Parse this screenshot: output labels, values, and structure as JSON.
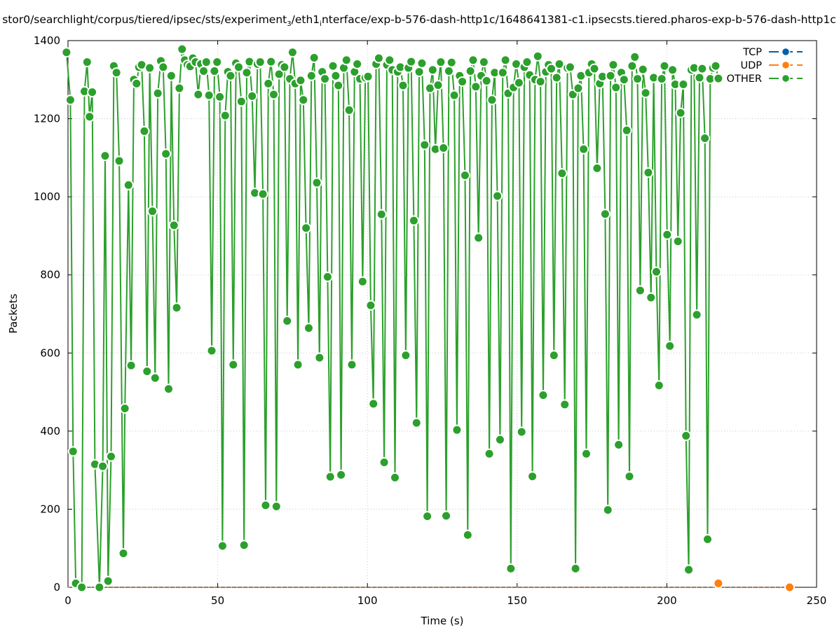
{
  "chart_data": {
    "type": "line",
    "title": "stor0/searchlight/corpus/tiered/ipsec/sts/experiment_3/eth1_interface/exp-b-576-dash-http1c/1648641381-c1.ipsecsts.tiered.pharos-exp-b-576-dash-http1c",
    "title_parts": {
      "a": "stor0/searchlight/corpus/tiered/ipsec/sts/experiment",
      "a_sub": "3",
      "b": "/eth1",
      "b_sub": "i",
      "c": "nterface/exp-b-576-dash-http1c/1648641381-c1.ipsecsts.tiered.pharos-exp-b-576-dash-http1c"
    },
    "xlabel": "Time (s)",
    "ylabel": "Packets",
    "xlim": [
      0,
      250
    ],
    "ylim": [
      0,
      1400
    ],
    "x_ticks": [
      0,
      50,
      100,
      150,
      200,
      250
    ],
    "y_ticks": [
      0,
      200,
      400,
      600,
      800,
      1000,
      1200,
      1400
    ],
    "grid": true,
    "legend_position": "top-right",
    "series": [
      {
        "name": "TCP",
        "color": "#0060ad",
        "points": []
      },
      {
        "name": "UDP",
        "color": "#ff7f0e",
        "points": [
          [
            217.2,
            10
          ],
          [
            241,
            0
          ]
        ],
        "zero_line_from": 0,
        "zero_line_to": 241
      },
      {
        "name": "OTHER",
        "color": "#2ca02c",
        "points": [
          [
            -0.5,
            1370
          ],
          [
            0.8,
            1248
          ],
          [
            1.7,
            348
          ],
          [
            2.6,
            10
          ],
          [
            4.6,
            0
          ],
          [
            5.5,
            1270
          ],
          [
            6.4,
            1345
          ],
          [
            7.2,
            1205
          ],
          [
            8.1,
            1268
          ],
          [
            9.0,
            315
          ],
          [
            10.5,
            0
          ],
          [
            11.6,
            310
          ],
          [
            12.4,
            1105
          ],
          [
            13.4,
            16
          ],
          [
            14.4,
            335
          ],
          [
            15.3,
            1335
          ],
          [
            16.2,
            1318
          ],
          [
            17.1,
            1092
          ],
          [
            18.5,
            87
          ],
          [
            19.0,
            458
          ],
          [
            20.2,
            1030
          ],
          [
            21.1,
            568
          ],
          [
            22.0,
            1300
          ],
          [
            22.9,
            1290
          ],
          [
            23.7,
            1332
          ],
          [
            24.6,
            1338
          ],
          [
            25.5,
            1168
          ],
          [
            26.4,
            553
          ],
          [
            27.3,
            1330
          ],
          [
            28.2,
            963
          ],
          [
            29.1,
            536
          ],
          [
            30.0,
            1265
          ],
          [
            31.0,
            1348
          ],
          [
            31.8,
            1332
          ],
          [
            32.7,
            1110
          ],
          [
            33.6,
            508
          ],
          [
            34.5,
            1310
          ],
          [
            35.4,
            927
          ],
          [
            36.3,
            716
          ],
          [
            37.2,
            1278
          ],
          [
            38.1,
            1378
          ],
          [
            39.0,
            1350
          ],
          [
            39.9,
            1338
          ],
          [
            40.8,
            1334
          ],
          [
            41.7,
            1355
          ],
          [
            42.6,
            1345
          ],
          [
            43.5,
            1262
          ],
          [
            44.4,
            1340
          ],
          [
            45.3,
            1322
          ],
          [
            46.2,
            1345
          ],
          [
            47.1,
            1260
          ],
          [
            48.0,
            606
          ],
          [
            48.9,
            1322
          ],
          [
            49.8,
            1345
          ],
          [
            50.7,
            1256
          ],
          [
            51.6,
            106
          ],
          [
            52.5,
            1208
          ],
          [
            53.4,
            1320
          ],
          [
            54.3,
            1310
          ],
          [
            55.2,
            570
          ],
          [
            56.1,
            1342
          ],
          [
            57.0,
            1332
          ],
          [
            57.9,
            1244
          ],
          [
            58.8,
            108
          ],
          [
            59.7,
            1318
          ],
          [
            60.6,
            1346
          ],
          [
            61.5,
            1258
          ],
          [
            62.4,
            1010
          ],
          [
            63.3,
            1340
          ],
          [
            64.2,
            1345
          ],
          [
            65.1,
            1007
          ],
          [
            66.0,
            210
          ],
          [
            66.9,
            1290
          ],
          [
            67.8,
            1346
          ],
          [
            68.7,
            1262
          ],
          [
            69.6,
            207
          ],
          [
            70.5,
            1314
          ],
          [
            71.4,
            1338
          ],
          [
            72.3,
            1332
          ],
          [
            73.2,
            682
          ],
          [
            74.1,
            1302
          ],
          [
            75.0,
            1370
          ],
          [
            75.9,
            1290
          ],
          [
            76.8,
            570
          ],
          [
            77.7,
            1298
          ],
          [
            78.6,
            1248
          ],
          [
            79.5,
            920
          ],
          [
            80.4,
            664
          ],
          [
            81.3,
            1310
          ],
          [
            82.2,
            1356
          ],
          [
            83.1,
            1036
          ],
          [
            84.0,
            588
          ],
          [
            84.9,
            1320
          ],
          [
            85.8,
            1302
          ],
          [
            86.7,
            795
          ],
          [
            87.6,
            283
          ],
          [
            88.5,
            1335
          ],
          [
            89.4,
            1310
          ],
          [
            90.3,
            1285
          ],
          [
            91.2,
            288
          ],
          [
            92.1,
            1330
          ],
          [
            93.0,
            1350
          ],
          [
            93.9,
            1222
          ],
          [
            94.8,
            570
          ],
          [
            95.7,
            1320
          ],
          [
            96.6,
            1340
          ],
          [
            97.5,
            1302
          ],
          [
            98.4,
            783
          ],
          [
            99.3,
            1305
          ],
          [
            100.2,
            1308
          ],
          [
            101.1,
            722
          ],
          [
            102.0,
            470
          ],
          [
            102.9,
            1340
          ],
          [
            103.8,
            1355
          ],
          [
            104.7,
            955
          ],
          [
            105.6,
            320
          ],
          [
            106.5,
            1338
          ],
          [
            107.4,
            1350
          ],
          [
            108.3,
            1325
          ],
          [
            109.2,
            281
          ],
          [
            110.1,
            1320
          ],
          [
            111.0,
            1332
          ],
          [
            111.9,
            1285
          ],
          [
            112.8,
            594
          ],
          [
            113.7,
            1330
          ],
          [
            114.6,
            1346
          ],
          [
            115.5,
            939
          ],
          [
            116.4,
            421
          ],
          [
            117.3,
            1320
          ],
          [
            118.2,
            1342
          ],
          [
            119.1,
            1133
          ],
          [
            120.0,
            182
          ],
          [
            120.9,
            1278
          ],
          [
            121.8,
            1325
          ],
          [
            122.7,
            1122
          ],
          [
            123.6,
            1286
          ],
          [
            124.5,
            1345
          ],
          [
            125.4,
            1125
          ],
          [
            126.3,
            183
          ],
          [
            127.2,
            1322
          ],
          [
            128.1,
            1344
          ],
          [
            129.0,
            1260
          ],
          [
            129.9,
            403
          ],
          [
            130.8,
            1310
          ],
          [
            131.7,
            1295
          ],
          [
            132.6,
            1055
          ],
          [
            133.5,
            134
          ],
          [
            134.4,
            1322
          ],
          [
            135.3,
            1350
          ],
          [
            136.2,
            1282
          ],
          [
            137.1,
            895
          ],
          [
            138.0,
            1310
          ],
          [
            138.9,
            1345
          ],
          [
            139.8,
            1297
          ],
          [
            140.7,
            342
          ],
          [
            141.6,
            1248
          ],
          [
            142.5,
            1318
          ],
          [
            143.4,
            1002
          ],
          [
            144.3,
            378
          ],
          [
            145.2,
            1318
          ],
          [
            146.1,
            1350
          ],
          [
            147.0,
            1265
          ],
          [
            147.9,
            48
          ],
          [
            148.8,
            1280
          ],
          [
            149.7,
            1340
          ],
          [
            150.6,
            1292
          ],
          [
            151.5,
            398
          ],
          [
            152.4,
            1332
          ],
          [
            153.3,
            1345
          ],
          [
            154.2,
            1312
          ],
          [
            155.1,
            284
          ],
          [
            156.0,
            1300
          ],
          [
            156.9,
            1360
          ],
          [
            157.8,
            1295
          ],
          [
            158.7,
            492
          ],
          [
            159.6,
            1320
          ],
          [
            160.5,
            1338
          ],
          [
            161.4,
            1328
          ],
          [
            162.3,
            594
          ],
          [
            163.2,
            1305
          ],
          [
            164.1,
            1340
          ],
          [
            165.0,
            1060
          ],
          [
            165.9,
            468
          ],
          [
            166.8,
            1330
          ],
          [
            167.7,
            1332
          ],
          [
            168.6,
            1262
          ],
          [
            169.5,
            48
          ],
          [
            170.4,
            1278
          ],
          [
            171.3,
            1310
          ],
          [
            172.2,
            1122
          ],
          [
            173.1,
            342
          ],
          [
            174.0,
            1318
          ],
          [
            174.9,
            1340
          ],
          [
            175.8,
            1328
          ],
          [
            176.7,
            1073
          ],
          [
            177.6,
            1290
          ],
          [
            178.5,
            1308
          ],
          [
            179.4,
            956
          ],
          [
            180.3,
            198
          ],
          [
            181.2,
            1310
          ],
          [
            182.1,
            1338
          ],
          [
            183.0,
            1280
          ],
          [
            183.9,
            365
          ],
          [
            184.8,
            1318
          ],
          [
            185.7,
            1300
          ],
          [
            186.6,
            1170
          ],
          [
            187.5,
            284
          ],
          [
            188.4,
            1335
          ],
          [
            189.3,
            1358
          ],
          [
            190.2,
            1302
          ],
          [
            191.1,
            760
          ],
          [
            192.0,
            1326
          ],
          [
            192.9,
            1266
          ],
          [
            193.8,
            1062
          ],
          [
            194.7,
            742
          ],
          [
            195.6,
            1305
          ],
          [
            196.5,
            808
          ],
          [
            197.4,
            517
          ],
          [
            198.3,
            1302
          ],
          [
            199.2,
            1335
          ],
          [
            200.1,
            903
          ],
          [
            201.0,
            618
          ],
          [
            201.9,
            1325
          ],
          [
            202.8,
            1288
          ],
          [
            203.7,
            886
          ],
          [
            204.6,
            1215
          ],
          [
            205.5,
            1288
          ],
          [
            206.4,
            388
          ],
          [
            207.3,
            45
          ],
          [
            208.2,
            1325
          ],
          [
            209.1,
            1330
          ],
          [
            210.0,
            698
          ],
          [
            210.9,
            1305
          ],
          [
            211.8,
            1328
          ],
          [
            212.7,
            1150
          ],
          [
            213.6,
            123
          ],
          [
            214.5,
            1302
          ],
          [
            215.4,
            1330
          ],
          [
            216.3,
            1335
          ],
          [
            217.2,
            1303
          ]
        ]
      }
    ]
  }
}
